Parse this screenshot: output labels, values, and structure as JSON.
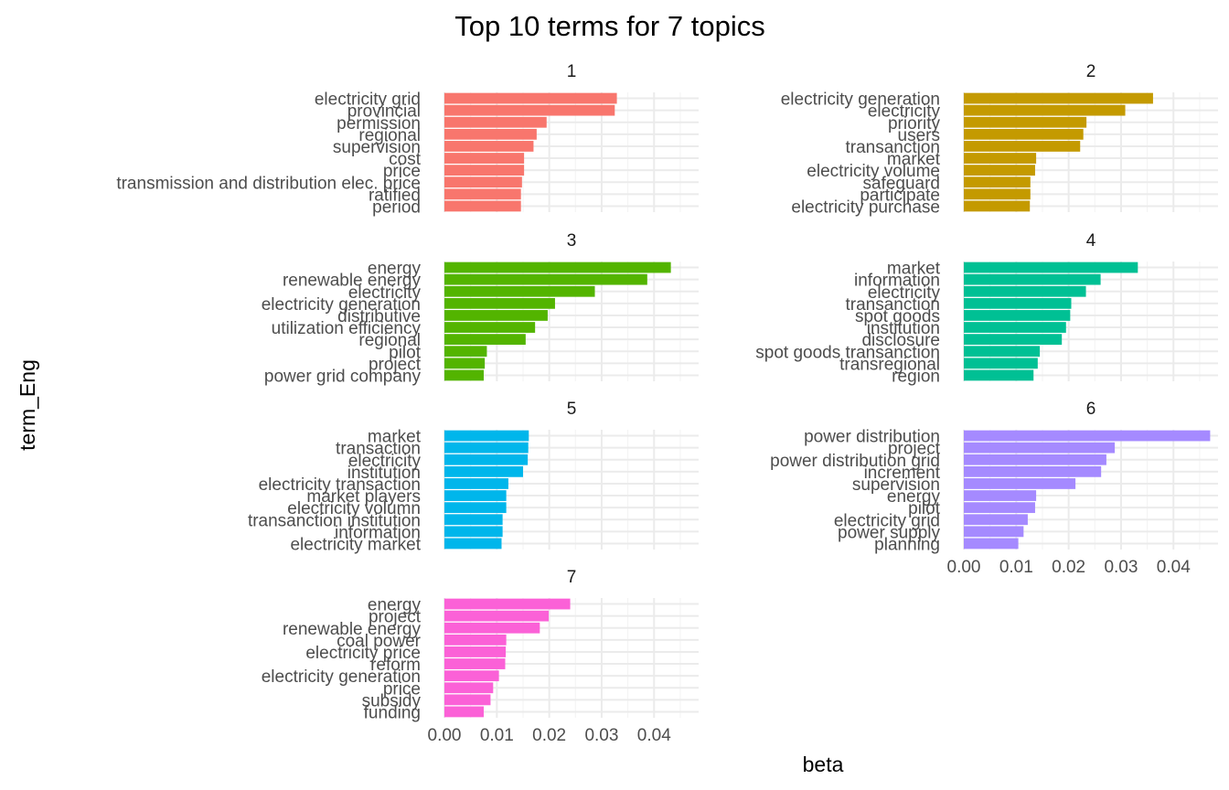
{
  "chart_data": {
    "type": "bar",
    "orientation": "horizontal",
    "title": "Top 10 terms for 7 topics",
    "xlabel": "beta",
    "ylabel": "term_Eng",
    "xlim": [
      0,
      0.0485
    ],
    "x_ticks": [
      "0.00",
      "0.01",
      "0.02",
      "0.03",
      "0.04"
    ],
    "x_tick_values": [
      0,
      0.01,
      0.02,
      0.03,
      0.04
    ],
    "grid": true,
    "legend": "none",
    "panels": [
      {
        "label": "1",
        "color": "#F8766D",
        "terms": [
          "electricity grid",
          "provincial",
          "permission",
          "regional",
          "supervision",
          "cost",
          "price",
          "transmission and distribution elec. price",
          "ratified",
          "period"
        ],
        "values": [
          0.0329,
          0.0325,
          0.0195,
          0.0176,
          0.017,
          0.0152,
          0.0152,
          0.0148,
          0.0146,
          0.0146
        ]
      },
      {
        "label": "2",
        "color": "#C49A00",
        "terms": [
          "electricity generation",
          "electricity",
          "priority",
          "users",
          "transanction",
          "market",
          "electricity volume",
          "safeguard",
          "participate",
          "electricity purchase"
        ],
        "values": [
          0.0361,
          0.0308,
          0.0234,
          0.0228,
          0.0222,
          0.0138,
          0.0136,
          0.0127,
          0.0127,
          0.0126
        ]
      },
      {
        "label": "3",
        "color": "#53B400",
        "terms": [
          "energy",
          "renewable energy",
          "electricity",
          "electricity generation",
          "distributive",
          "utilization efficiency",
          "regional",
          "pilot",
          "project",
          "power grid company"
        ],
        "values": [
          0.0432,
          0.0387,
          0.0287,
          0.0211,
          0.0197,
          0.0173,
          0.0155,
          0.0081,
          0.0077,
          0.0075
        ]
      },
      {
        "label": "4",
        "color": "#00C094",
        "terms": [
          "market",
          "information",
          "electricity",
          "transanction",
          "spot goods",
          "institution",
          "disclosure",
          "spot goods transanction",
          "transregional",
          "region"
        ],
        "values": [
          0.0332,
          0.0261,
          0.0233,
          0.0205,
          0.0203,
          0.0195,
          0.0187,
          0.0145,
          0.0141,
          0.0133
        ]
      },
      {
        "label": "5",
        "color": "#00B6EB",
        "terms": [
          "market",
          "transaction",
          "electricity",
          "institution",
          "electricity transaction",
          "market players",
          "electricity volumn",
          "transanction institution",
          "information",
          "electricity market"
        ],
        "values": [
          0.0161,
          0.016,
          0.0159,
          0.015,
          0.0122,
          0.0118,
          0.0118,
          0.0111,
          0.0111,
          0.0109
        ]
      },
      {
        "label": "6",
        "color": "#A58AFF",
        "terms": [
          "power distribution",
          "project",
          "power distribution grid",
          "increment",
          "supervision",
          "energy",
          "pilot",
          "electricity grid",
          "power supply",
          "planning"
        ],
        "values": [
          0.047,
          0.0288,
          0.0272,
          0.0262,
          0.0213,
          0.0138,
          0.0136,
          0.0122,
          0.0114,
          0.0104
        ]
      },
      {
        "label": "7",
        "color": "#FB61D7",
        "terms": [
          "energy",
          "project",
          "renewable energy",
          "coal power",
          "electricity price",
          "reform",
          "electricity generation",
          "price",
          "subsidy",
          "funding"
        ],
        "values": [
          0.024,
          0.0199,
          0.0182,
          0.0118,
          0.0117,
          0.0116,
          0.0104,
          0.0093,
          0.0088,
          0.0075
        ]
      }
    ]
  }
}
